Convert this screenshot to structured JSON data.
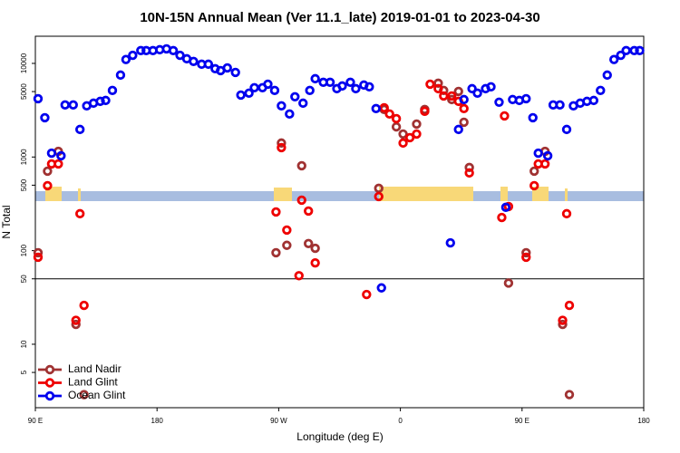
{
  "chart_data": {
    "type": "scatter",
    "title": "10N-15N Annual Mean (Ver 11.1_late)   2019-01-01 to 2023-04-30",
    "x_label": "Longitude (deg E)",
    "y_label": "N Total",
    "xlim": [
      90,
      540
    ],
    "ylim": [
      2.1,
      19500
    ],
    "ylog": true,
    "hline": 50,
    "xticks": [
      {
        "value": 90,
        "label": "90 E"
      },
      180,
      {
        "value": 270,
        "label": "90 W"
      },
      {
        "value": 360,
        "label": "0"
      },
      {
        "value": 450,
        "label": "90 E"
      },
      {
        "value": 540,
        "label": "180"
      }
    ],
    "yticks": [
      5,
      10,
      50,
      100,
      500,
      1000,
      5000,
      10000
    ],
    "legend": "bottom-left",
    "series": [
      {
        "name": "Land Nadir",
        "color": "#a03232",
        "x": [
          92,
          99,
          107,
          120,
          126,
          268,
          272,
          276,
          287,
          292,
          297,
          344,
          348,
          357,
          362,
          372,
          378,
          388,
          392,
          398,
          403,
          407,
          411,
          440,
          453,
          459,
          467,
          480,
          485
        ],
        "values": [
          95,
          706,
          1150,
          16.3,
          2.9,
          95,
          1410,
          114,
          807,
          119,
          106,
          463,
          3220,
          2100,
          1760,
          2250,
          3220,
          6140,
          5140,
          4110,
          5020,
          2350,
          773,
          45,
          95,
          706,
          1150,
          16.3,
          2.9
        ]
      },
      {
        "name": "Land Glint",
        "color": "#ee0000",
        "x": [
          92,
          99,
          102,
          107,
          120,
          123,
          126,
          268,
          272,
          276,
          285,
          287,
          292,
          297,
          335,
          344,
          348,
          352,
          357,
          362,
          367,
          372,
          378,
          382,
          388,
          392,
          398,
          403,
          407,
          411,
          435,
          437,
          440,
          453,
          459,
          462,
          467,
          480,
          483,
          485
        ],
        "values": [
          85,
          494,
          844,
          844,
          18,
          248,
          26,
          259,
          1260,
          166,
          54,
          346,
          265,
          74,
          34,
          378,
          3360,
          2880,
          2570,
          1410,
          1610,
          1760,
          3080,
          6000,
          5370,
          4490,
          4490,
          3930,
          3290,
          676,
          226,
          2750,
          296,
          85,
          494,
          844,
          844,
          18,
          248,
          26
        ]
      },
      {
        "name": "Ocean Glint",
        "color": "#0000ee",
        "x": [
          92,
          97,
          102,
          109,
          112,
          118,
          123,
          128,
          133,
          138,
          142,
          147,
          153,
          157,
          162,
          168,
          172,
          177,
          182,
          187,
          192,
          197,
          202,
          207,
          213,
          218,
          223,
          227,
          232,
          238,
          242,
          248,
          252,
          258,
          262,
          267,
          272,
          278,
          282,
          288,
          293,
          297,
          303,
          308,
          313,
          317,
          323,
          327,
          333,
          337,
          342,
          346,
          397,
          403,
          407,
          413,
          417,
          423,
          427,
          433,
          438,
          443,
          448,
          453,
          458,
          462,
          469,
          473,
          478,
          483,
          488,
          493,
          498,
          503,
          508,
          513,
          518,
          523,
          527,
          533,
          537
        ],
        "values": [
          4200,
          2630,
          1100,
          1030,
          3600,
          3600,
          1970,
          3520,
          3760,
          3930,
          4020,
          5140,
          7500,
          11000,
          12200,
          13700,
          13700,
          13700,
          14000,
          14300,
          13700,
          12200,
          11200,
          10500,
          9800,
          9800,
          8770,
          8380,
          8950,
          8010,
          4590,
          4810,
          5500,
          5500,
          6000,
          5140,
          3520,
          2880,
          4400,
          3760,
          5140,
          6860,
          6280,
          6280,
          5370,
          5740,
          6280,
          5370,
          5870,
          5620,
          3290,
          40,
          121,
          1970,
          4110,
          5370,
          4810,
          5370,
          5620,
          3850,
          290,
          4110,
          4020,
          4200,
          2630,
          1100,
          1030,
          3600,
          3600,
          1970,
          3520,
          3760,
          3930,
          4020,
          5140,
          7500,
          11000,
          12200,
          13700,
          13700,
          13700
        ]
      }
    ]
  }
}
